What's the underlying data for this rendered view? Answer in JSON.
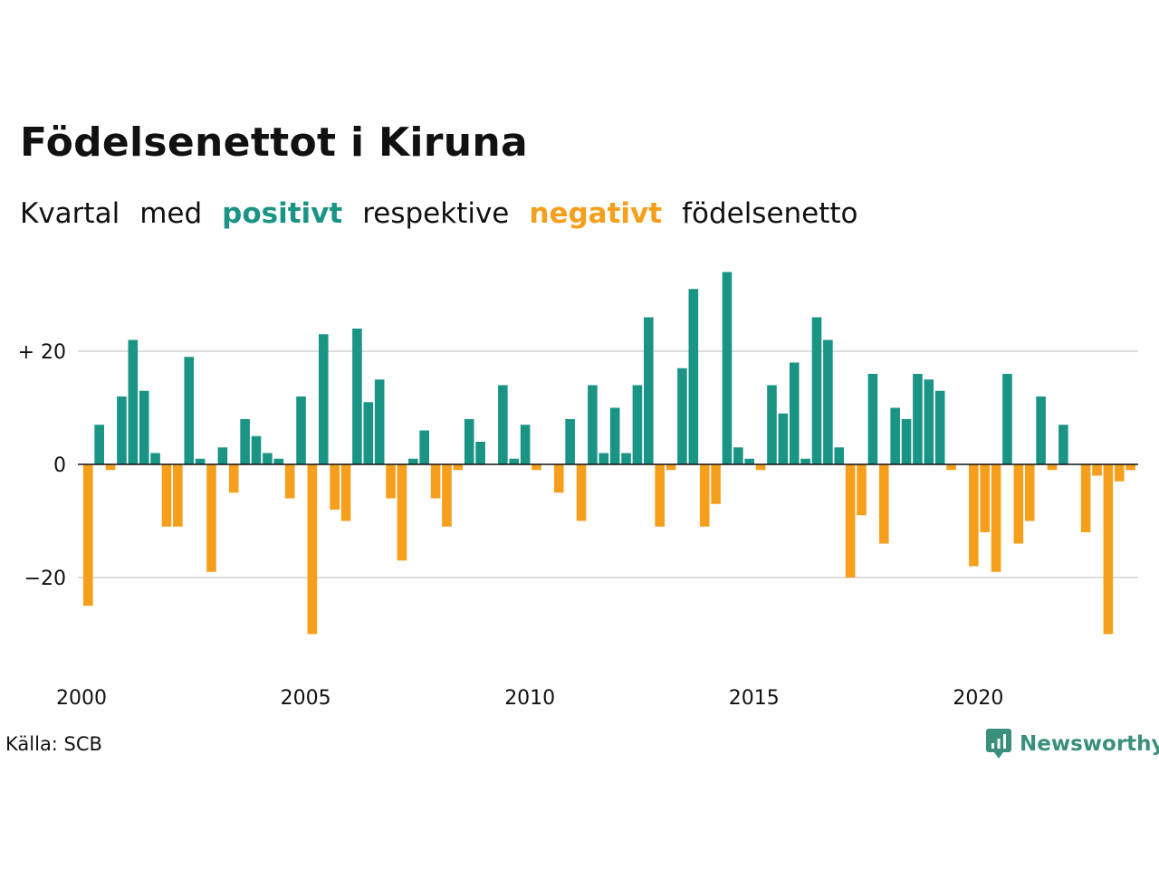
{
  "title": "Födelsenettot i Kiruna",
  "subtitle": {
    "w1": "Kvartal",
    "w2": "med",
    "positive": "positivt",
    "w3": "respektive",
    "negative": "negativt",
    "w4": "födelsenetto"
  },
  "source": "Källa: SCB",
  "brand": "Newsworthy",
  "colors": {
    "positive": "#1a9485",
    "negative": "#f59f1c",
    "grid": "#dddddd",
    "zero": "#111111"
  },
  "chart_data": {
    "type": "bar",
    "x_start": "2000 Q1",
    "x_end": "2023 Q4",
    "xticks": [
      "2000",
      "2005",
      "2010",
      "2015",
      "2020"
    ],
    "yticks": [
      {
        "value": 20,
        "label": "+ 20"
      },
      {
        "value": 0,
        "label": "0"
      },
      {
        "value": -20,
        "label": "−20"
      }
    ],
    "ylim": [
      -33,
      38
    ],
    "grid": true,
    "values": [
      -25,
      7,
      -1,
      12,
      22,
      13,
      2,
      -11,
      -11,
      19,
      1,
      -19,
      3,
      -5,
      8,
      5,
      2,
      1,
      -6,
      12,
      -30,
      23,
      -8,
      -10,
      24,
      11,
      15,
      -6,
      -17,
      1,
      6,
      -6,
      -11,
      -1,
      8,
      4,
      0,
      14,
      1,
      7,
      -1,
      0,
      -5,
      8,
      -10,
      14,
      2,
      10,
      2,
      14,
      26,
      -11,
      -1,
      17,
      31,
      -11,
      -7,
      34,
      3,
      1,
      -1,
      14,
      9,
      18,
      1,
      26,
      22,
      3,
      -20,
      -9,
      16,
      -14,
      10,
      8,
      16,
      15,
      13,
      -1,
      0,
      -18,
      -12,
      -19,
      16,
      -14,
      -10,
      12,
      -1,
      7,
      0,
      -12,
      -2,
      -30,
      -3,
      -1
    ]
  }
}
